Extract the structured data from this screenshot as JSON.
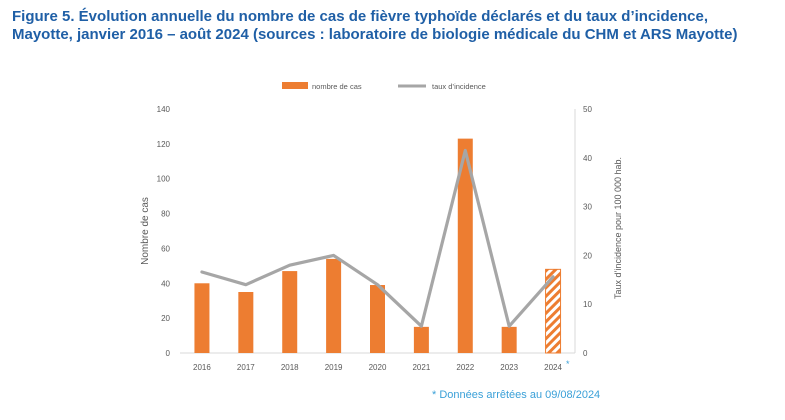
{
  "figure": {
    "title_line1": "Figure 5. Évolution annuelle du nombre de cas de fièvre typhoïde déclarés et du taux d’incidence,",
    "title_line2": "Mayotte, janvier 2016 – août 2024 (sources : laboratoire de biologie médicale du CHM et ARS Mayotte)",
    "footnote": "* Données arrêtées au 09/08/2024"
  },
  "colors": {
    "bar": "#ed7d31",
    "line": "#a6a6a6",
    "title": "#1f5fa6",
    "note": "#3aa0d8",
    "axis_text": "#595959"
  },
  "chart_data": {
    "type": "bar",
    "categories": [
      "2016",
      "2017",
      "2018",
      "2019",
      "2020",
      "2021",
      "2022",
      "2023",
      "2024"
    ],
    "category_markers": [
      "",
      "",
      "",
      "",
      "",
      "",
      "",
      "",
      "*"
    ],
    "series": [
      {
        "name": "nombre de cas",
        "type": "bar",
        "axis": "left",
        "values": [
          40,
          35,
          47,
          54,
          39,
          15,
          123,
          15,
          48
        ],
        "hatched": [
          false,
          false,
          false,
          false,
          false,
          false,
          false,
          false,
          true
        ]
      },
      {
        "name": "taux d’incidence",
        "type": "line",
        "axis": "right",
        "values": [
          16.6,
          14,
          18,
          20,
          14,
          5.5,
          41.5,
          5.5,
          15.6
        ]
      }
    ],
    "ylabel": "Nombre de cas",
    "y2label": "Taux d’incidence pour 100 000 hab.",
    "ylim": [
      0,
      140
    ],
    "yticks": [
      0,
      20,
      40,
      60,
      80,
      100,
      120,
      140
    ],
    "y2lim": [
      0,
      50
    ],
    "y2ticks": [
      0,
      10,
      20,
      30,
      40,
      50
    ],
    "grid": false,
    "legend_position": "top-center"
  }
}
